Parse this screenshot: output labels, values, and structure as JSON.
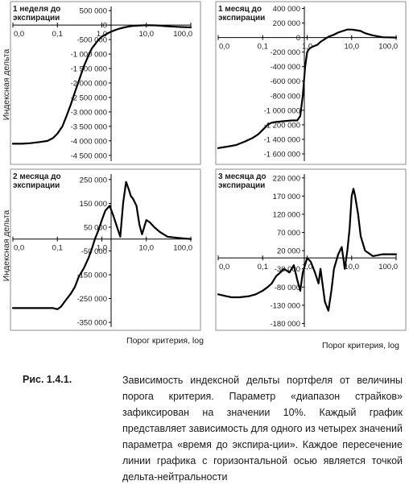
{
  "y_axis_title": "Индексная дельта",
  "x_axis_title": "Порог критерия, log",
  "caption": {
    "label": "Рис. 1.4.1.",
    "text": "Зависимость индексной дельты портфеля от величины порога критерия. Параметр «диапазон страйков» зафиксирован на значении 10%. Каждый график представляет зависимость для одного из четырех значений параметра «время до экспира-ции». Каждое пересечение линии графика с горизонтальной осью является точкой дельта-нейтральности"
  },
  "colors": {
    "line": "#000000",
    "frame": "#8c8c8c",
    "text": "#1a1a1a"
  },
  "chart_data": [
    {
      "type": "line",
      "title": "1 неделя до экспирации",
      "x_scale": "log",
      "xlim": [
        0.01,
        100
      ],
      "x_ticks": [
        "0,0",
        "0,1",
        "1,0",
        "10,0",
        "100,0"
      ],
      "ylim": [
        -4700000,
        700000
      ],
      "y_ticks": [
        "500 000",
        "0",
        "-500 000",
        "-1 000 000",
        "-1 500 000",
        "-2 000 000",
        "-2 500 000",
        "-3 000 000",
        "-3 500 000",
        "-4 000 000",
        "-4 500 000"
      ],
      "y_tick_values": [
        500000,
        0,
        -500000,
        -1000000,
        -1500000,
        -2000000,
        -2500000,
        -3000000,
        -3500000,
        -4000000,
        -4500000
      ],
      "x": [
        0.01,
        0.016,
        0.025,
        0.04,
        0.06,
        0.08,
        0.1,
        0.13,
        0.16,
        0.2,
        0.25,
        0.3,
        0.4,
        0.5,
        0.6,
        0.8,
        1.0,
        1.3,
        1.6,
        2.0,
        2.5,
        3.2,
        4.0,
        5.0,
        6.3,
        8.0,
        10,
        13,
        16,
        20,
        30,
        50,
        100
      ],
      "y": [
        -4100000,
        -4100000,
        -4080000,
        -4040000,
        -4000000,
        -3900000,
        -3750000,
        -3500000,
        -3150000,
        -2750000,
        -2300000,
        -1950000,
        -1400000,
        -1050000,
        -800000,
        -550000,
        -400000,
        -300000,
        -230000,
        -170000,
        -120000,
        -80000,
        -50000,
        -30000,
        -20000,
        -10000,
        -5000,
        -8000,
        -10000,
        -20000,
        -40000,
        -60000,
        -80000
      ]
    },
    {
      "type": "line",
      "title": "1 месяц до экспирации",
      "x_scale": "log",
      "xlim": [
        0.01,
        100
      ],
      "x_ticks": [
        "0,0",
        "0,1",
        "1,0",
        "10,0",
        "100,0"
      ],
      "ylim": [
        -1700000,
        450000
      ],
      "y_ticks": [
        "400 000",
        "200 000",
        "0",
        "-200 000",
        "-400 000",
        "-600 000",
        "-800 000",
        "-1 000 000",
        "-1 200 000",
        "-1 400 000",
        "-1 600 000"
      ],
      "y_tick_values": [
        400000,
        200000,
        0,
        -200000,
        -400000,
        -600000,
        -800000,
        -1000000,
        -1200000,
        -1400000,
        -1600000
      ],
      "x": [
        0.01,
        0.016,
        0.025,
        0.04,
        0.06,
        0.08,
        0.1,
        0.13,
        0.16,
        0.2,
        0.3,
        0.45,
        0.6,
        0.7,
        0.8,
        0.9,
        1.0,
        1.1,
        1.2,
        1.4,
        1.7,
        2.0,
        2.5,
        3.0,
        4.0,
        5.0,
        6.3,
        8.0,
        10,
        13,
        16,
        20,
        30,
        50,
        100
      ],
      "y": [
        -1520000,
        -1500000,
        -1480000,
        -1430000,
        -1380000,
        -1330000,
        -1270000,
        -1200000,
        -1170000,
        -1160000,
        -1150000,
        -1140000,
        -1140000,
        -1080000,
        -800000,
        -400000,
        -200000,
        -160000,
        -140000,
        -120000,
        -100000,
        -60000,
        -20000,
        10000,
        40000,
        70000,
        90000,
        110000,
        110000,
        100000,
        90000,
        60000,
        30000,
        5000,
        0
      ]
    },
    {
      "type": "line",
      "title": "2 месяца до экспирации",
      "x_scale": "log",
      "xlim": [
        0.01,
        100
      ],
      "x_ticks": [
        "0,0",
        "0,1",
        "1,0",
        "10,0",
        "100,0"
      ],
      "ylim": [
        -370000,
        280000
      ],
      "y_ticks": [
        "250 000",
        "150 000",
        "50 000",
        "-50 000",
        "-150 000",
        "-250 000",
        "-350 000"
      ],
      "y_tick_values": [
        250000,
        150000,
        50000,
        -50000,
        -150000,
        -250000,
        -350000
      ],
      "x": [
        0.01,
        0.02,
        0.04,
        0.06,
        0.08,
        0.1,
        0.12,
        0.15,
        0.2,
        0.25,
        0.3,
        0.4,
        0.5,
        0.6,
        0.7,
        0.85,
        1.0,
        1.2,
        1.5,
        1.8,
        2.2,
        2.6,
        3.0,
        3.5,
        4.0,
        4.5,
        5.0,
        6.0,
        7.0,
        8.0,
        10,
        12,
        15,
        20,
        30,
        50,
        100
      ],
      "y": [
        -290000,
        -290000,
        -290000,
        -290000,
        -290000,
        -295000,
        -285000,
        -260000,
        -230000,
        -200000,
        -160000,
        -120000,
        -80000,
        -40000,
        0,
        40000,
        80000,
        120000,
        140000,
        100000,
        50000,
        10000,
        150000,
        240000,
        210000,
        180000,
        170000,
        140000,
        60000,
        20000,
        80000,
        70000,
        50000,
        30000,
        10000,
        5000,
        0
      ]
    },
    {
      "type": "line",
      "title": "3 месяца до экспирации",
      "x_scale": "log",
      "xlim": [
        0.01,
        100
      ],
      "x_ticks": [
        "0,0",
        "0,1",
        "1,0",
        "10,0",
        "100,0"
      ],
      "ylim": [
        -190000,
        235000
      ],
      "y_ticks": [
        "220 000",
        "170 000",
        "120 000",
        "70 000",
        "20 000",
        "-30 000",
        "-80 000",
        "-130 000",
        "-180 000"
      ],
      "y_tick_values": [
        220000,
        170000,
        120000,
        70000,
        20000,
        -30000,
        -80000,
        -130000,
        -180000
      ],
      "x": [
        0.01,
        0.015,
        0.02,
        0.03,
        0.05,
        0.07,
        0.1,
        0.13,
        0.16,
        0.2,
        0.25,
        0.3,
        0.4,
        0.5,
        0.6,
        0.7,
        0.8,
        1.0,
        1.2,
        1.5,
        1.8,
        2.0,
        2.5,
        3.0,
        3.5,
        4.0,
        5.0,
        6.0,
        7.0,
        8.0,
        9.0,
        10,
        11,
        12,
        14,
        16,
        20,
        30,
        50,
        100
      ],
      "y": [
        -100000,
        -105000,
        -108000,
        -108000,
        -105000,
        -100000,
        -90000,
        -80000,
        -70000,
        -50000,
        -40000,
        -30000,
        -40000,
        -20000,
        -60000,
        -90000,
        -40000,
        0,
        -10000,
        -40000,
        -70000,
        -30000,
        -120000,
        -145000,
        -90000,
        -30000,
        10000,
        30000,
        -30000,
        20000,
        80000,
        170000,
        190000,
        170000,
        120000,
        60000,
        20000,
        5000,
        10000,
        10000
      ]
    }
  ]
}
